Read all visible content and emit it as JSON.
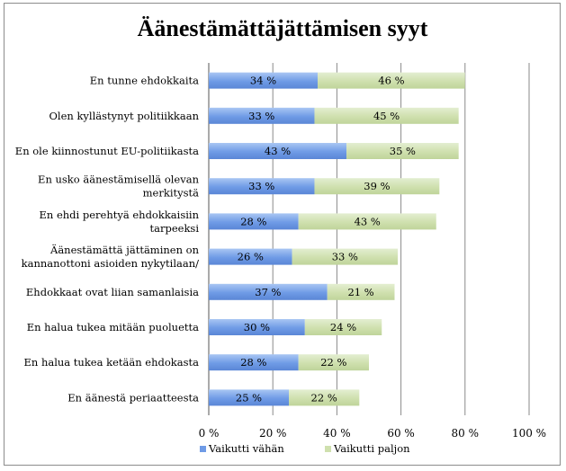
{
  "chart_data": {
    "type": "bar",
    "orientation": "horizontal",
    "stacked": true,
    "title": "Äänestämättäjättämisen syyt",
    "categories": [
      "En tunne ehdokkaita",
      "Olen kyllästynyt politiikkaan",
      "En ole kiinnostunut EU-politiikasta",
      "En usko äänestämisellä olevan merkitystä",
      "En ehdi perehtyä ehdokkaisiin tarpeeksi",
      "Äänestämättä jättäminen on kannanottoni asioiden nykytilaan/",
      "Ehdokkaat ovat liian samanlaisia",
      "En halua tukea mitään puoluetta",
      "En halua tukea ketään ehdokasta",
      "En äänestä periaatteesta"
    ],
    "category_lines": [
      [
        "En tunne ehdokkaita"
      ],
      [
        "Olen kyllästynyt politiikkaan"
      ],
      [
        "En ole kiinnostunut EU-politiikasta"
      ],
      [
        "En usko äänestämisellä olevan",
        "merkitystä"
      ],
      [
        "En ehdi perehtyä ehdokkaisiin",
        "tarpeeksi"
      ],
      [
        "Äänestämättä jättäminen on",
        "kannanottoni asioiden nykytilaan/"
      ],
      [
        "Ehdokkaat ovat liian samanlaisia"
      ],
      [
        "En halua tukea mitään puoluetta"
      ],
      [
        "En halua tukea ketään ehdokasta"
      ],
      [
        "En äänestä periaatteesta"
      ]
    ],
    "series": [
      {
        "name": "Vaikutti vähän",
        "color": "#6f9be6",
        "values": [
          34,
          33,
          43,
          33,
          28,
          26,
          37,
          30,
          28,
          25
        ],
        "labels": [
          "34 %",
          "33 %",
          "43 %",
          "33 %",
          "28 %",
          "26 %",
          "37 %",
          "30 %",
          "28 %",
          "25 %"
        ]
      },
      {
        "name": "Vaikutti paljon",
        "color": "#cfe0ae",
        "values": [
          46,
          45,
          35,
          39,
          43,
          33,
          21,
          24,
          22,
          22
        ],
        "labels": [
          "46 %",
          "45 %",
          "35 %",
          "39 %",
          "43 %",
          "33 %",
          "21 %",
          "24 %",
          "22 %",
          "22 %"
        ]
      }
    ],
    "xlim": [
      0,
      100
    ],
    "x_ticks": [
      0,
      20,
      40,
      60,
      80,
      100
    ],
    "x_tick_labels": [
      "0 %",
      "20 %",
      "40 %",
      "60 %",
      "80 %",
      "100 %"
    ],
    "grid": true,
    "legend_position": "bottom-left"
  }
}
